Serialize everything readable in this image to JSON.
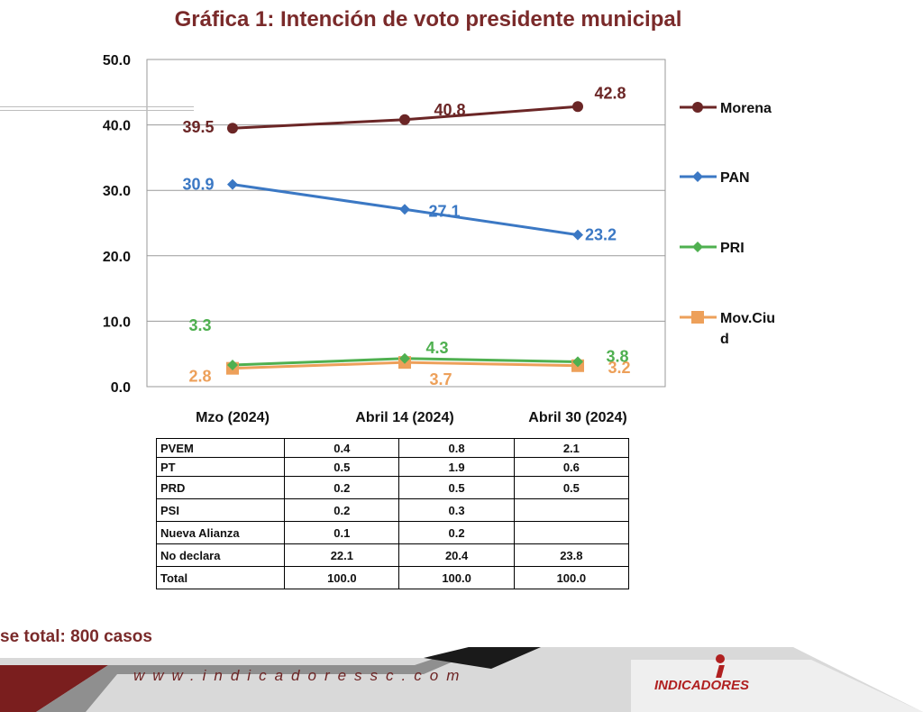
{
  "title": "Gráfica 1: Intención de voto presidente municipal",
  "chart_data": {
    "type": "line",
    "categories": [
      "Mzo (2024)",
      "Abril 14 (2024)",
      "Abril 30 (2024)"
    ],
    "ylim": [
      0,
      50
    ],
    "yticks": [
      "0.0",
      "10.0",
      "20.0",
      "30.0",
      "40.0",
      "50.0"
    ],
    "grid": true,
    "legend_position": "right",
    "series": [
      {
        "name": "Morena",
        "values": [
          39.5,
          40.8,
          42.8
        ],
        "labels": [
          "39.5",
          "40.8",
          "42.8"
        ],
        "color": "#6b2626",
        "marker": "circle"
      },
      {
        "name": "PAN",
        "values": [
          30.9,
          27.1,
          23.2
        ],
        "labels": [
          "30.9",
          "27.1",
          "23.2"
        ],
        "color": "#3b78c4",
        "marker": "diamond"
      },
      {
        "name": "PRI",
        "values": [
          3.3,
          4.3,
          3.8
        ],
        "labels": [
          "3.3",
          "4.3",
          "3.8"
        ],
        "color": "#4fb050",
        "marker": "diamond"
      },
      {
        "name": "Mov.Ciud",
        "values": [
          2.8,
          3.7,
          3.2
        ],
        "labels": [
          "2.8",
          "3.7",
          "3.2"
        ],
        "color": "#eda05a",
        "marker": "square"
      }
    ]
  },
  "legend_labels": {
    "morena": "Morena",
    "pan": "PAN",
    "pri": "PRI",
    "mov_line1": "Mov.Ciu",
    "mov_line2": "d"
  },
  "table": {
    "rows": [
      {
        "label": "PVEM",
        "values": [
          "0.4",
          "0.8",
          "2.1"
        ]
      },
      {
        "label": "PT",
        "values": [
          "0.5",
          "1.9",
          "0.6"
        ]
      },
      {
        "label": "PRD",
        "values": [
          "0.2",
          "0.5",
          "0.5"
        ]
      },
      {
        "label": "PSI",
        "values": [
          "0.2",
          "0.3",
          ""
        ]
      },
      {
        "label": "Nueva Alianza",
        "values": [
          "0.1",
          "0.2",
          ""
        ]
      },
      {
        "label": "No declara",
        "values": [
          "22.1",
          "20.4",
          "23.8"
        ]
      },
      {
        "label": "Total",
        "values": [
          "100.0",
          "100.0",
          "100.0"
        ]
      }
    ]
  },
  "base_note": "se total: 800 casos",
  "footer": {
    "website": "www.indicadoressc.com",
    "brand": "INDICADORES",
    "colors": {
      "maroon": "#7a1e1e",
      "grey": "#9a9a9a",
      "red": "#b02020"
    }
  }
}
